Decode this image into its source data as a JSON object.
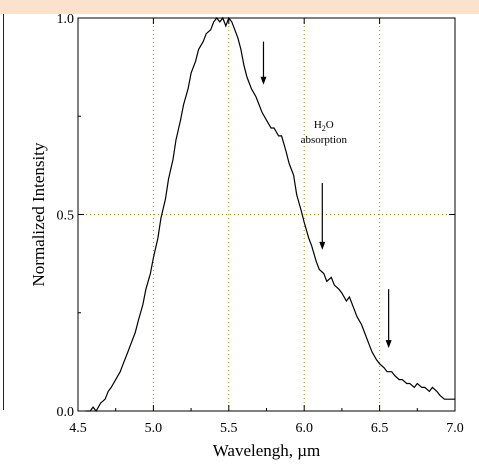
{
  "colors": {
    "header_band": "#fbe2cf",
    "curve": "#000000",
    "grid": "#9a9a00",
    "arrow": "#000000"
  },
  "chart_data": {
    "type": "line",
    "title": "",
    "xlabel": "Wavelengh, µm",
    "ylabel": "Normalized Intensity",
    "xlim": [
      4.5,
      7.0
    ],
    "ylim": [
      0.0,
      1.0
    ],
    "xticks": [
      4.5,
      5.0,
      5.5,
      6.0,
      6.5,
      7.0
    ],
    "xtick_labels": [
      "4.5",
      "5.0",
      "5.5",
      "6.0",
      "6.5",
      "7.0"
    ],
    "yticks": [
      0.0,
      0.5,
      1.0
    ],
    "ytick_labels": [
      "0.0",
      "0.5",
      "1.0"
    ],
    "grid": "dotted",
    "grid_x": [
      5.0,
      5.5,
      6.0,
      6.5
    ],
    "grid_y": [
      0.5
    ],
    "annotation": {
      "text_main": "H",
      "text_sub": "2",
      "text_tail": "O",
      "text_line2": "absorption",
      "x": 6.13,
      "y": 0.72
    },
    "arrows": [
      {
        "x": 5.73,
        "y_from": 0.94,
        "y_to": 0.83
      },
      {
        "x": 6.12,
        "y_from": 0.58,
        "y_to": 0.41
      },
      {
        "x": 6.56,
        "y_from": 0.31,
        "y_to": 0.16
      }
    ],
    "series": [
      {
        "x": [
          4.55,
          4.58,
          4.6,
          4.62,
          4.65,
          4.68,
          4.7,
          4.72,
          4.75,
          4.78,
          4.8,
          4.83,
          4.85,
          4.88,
          4.9,
          4.93,
          4.95,
          4.98,
          5.0,
          5.03,
          5.05,
          5.08,
          5.1,
          5.13,
          5.15,
          5.18,
          5.2,
          5.23,
          5.25,
          5.28,
          5.3,
          5.33,
          5.35,
          5.38,
          5.4,
          5.42,
          5.44,
          5.46,
          5.48,
          5.5,
          5.52,
          5.54,
          5.56,
          5.58,
          5.6,
          5.62,
          5.65,
          5.68,
          5.7,
          5.72,
          5.75,
          5.78,
          5.8,
          5.83,
          5.85,
          5.88,
          5.9,
          5.93,
          5.95,
          5.98,
          6.0,
          6.03,
          6.05,
          6.08,
          6.1,
          6.13,
          6.15,
          6.18,
          6.2,
          6.23,
          6.25,
          6.28,
          6.3,
          6.33,
          6.35,
          6.38,
          6.4,
          6.43,
          6.45,
          6.48,
          6.5,
          6.53,
          6.55,
          6.58,
          6.6,
          6.63,
          6.65,
          6.68,
          6.7,
          6.73,
          6.75,
          6.78,
          6.8,
          6.83,
          6.85,
          6.88,
          6.9,
          6.93,
          6.95,
          6.98,
          7.0
        ],
        "y": [
          0.0,
          0.0,
          0.01,
          0.0,
          0.02,
          0.03,
          0.05,
          0.06,
          0.08,
          0.1,
          0.12,
          0.15,
          0.17,
          0.2,
          0.23,
          0.27,
          0.31,
          0.35,
          0.39,
          0.44,
          0.49,
          0.54,
          0.59,
          0.64,
          0.69,
          0.74,
          0.78,
          0.82,
          0.86,
          0.89,
          0.92,
          0.94,
          0.96,
          0.97,
          0.99,
          1.0,
          0.99,
          1.0,
          0.98,
          1.0,
          0.99,
          0.97,
          0.95,
          0.92,
          0.88,
          0.85,
          0.82,
          0.8,
          0.78,
          0.76,
          0.74,
          0.72,
          0.72,
          0.7,
          0.7,
          0.66,
          0.63,
          0.6,
          0.55,
          0.51,
          0.48,
          0.44,
          0.42,
          0.38,
          0.36,
          0.35,
          0.33,
          0.34,
          0.32,
          0.31,
          0.3,
          0.28,
          0.29,
          0.26,
          0.24,
          0.22,
          0.2,
          0.17,
          0.15,
          0.13,
          0.12,
          0.11,
          0.1,
          0.1,
          0.09,
          0.08,
          0.08,
          0.07,
          0.07,
          0.06,
          0.07,
          0.06,
          0.06,
          0.05,
          0.06,
          0.05,
          0.04,
          0.03,
          0.03,
          0.03,
          0.03
        ]
      }
    ]
  }
}
